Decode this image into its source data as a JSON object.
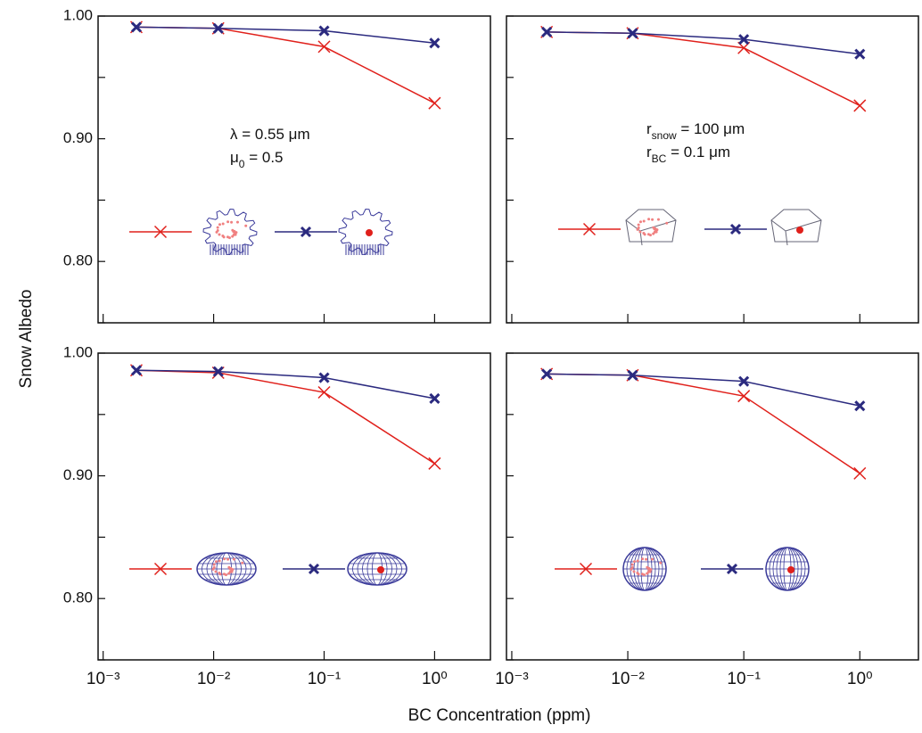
{
  "ylabel": "Snow Albedo",
  "xlabel": "BC Concentration (ppm)",
  "chart_data": [
    {
      "type": "line",
      "log_x": true,
      "xlim": [
        0.0009,
        3.2
      ],
      "ylim": [
        0.75,
        1
      ],
      "xticks": [
        0.001,
        0.01,
        0.1,
        1
      ],
      "yticks": [
        0.75,
        {
          "value": 0.8,
          "label": "0.80"
        },
        0.85,
        {
          "value": 0.9,
          "label": "0.90"
        },
        0.95,
        {
          "value": 1,
          "label": "1.00"
        }
      ],
      "x": [
        0.002,
        0.011,
        0.1,
        1
      ],
      "series": [
        {
          "color": "#e0201b",
          "marker": "x-thin",
          "values": [
            0.991,
            0.99,
            0.975,
            0.929
          ]
        },
        {
          "color": "#2b2a7f",
          "marker": "x-bold",
          "values": [
            0.991,
            0.99,
            0.988,
            0.978
          ]
        }
      ],
      "annotation": [
        [
          {
            "text": "λ = 0.55 μm"
          }
        ],
        [
          {
            "text": "μ"
          },
          {
            "sub": "0"
          },
          {
            "text": " = 0.5"
          }
        ]
      ]
    },
    {
      "type": "line",
      "log_x": true,
      "xlim": [
        0.0009,
        3.2
      ],
      "ylim": [
        0.75,
        1
      ],
      "xticks": [
        0.001,
        0.01,
        0.1,
        1
      ],
      "yticks": [
        0.75,
        0.8,
        0.85,
        0.9,
        0.95,
        1
      ],
      "x": [
        0.002,
        0.011,
        0.1,
        1
      ],
      "series": [
        {
          "color": "#e0201b",
          "marker": "x-thin",
          "values": [
            0.987,
            0.986,
            0.974,
            0.927
          ]
        },
        {
          "color": "#2b2a7f",
          "marker": "x-bold",
          "values": [
            0.987,
            0.986,
            0.981,
            0.969
          ]
        }
      ],
      "annotation": [
        [
          {
            "text": "r"
          },
          {
            "sub": "snow"
          },
          {
            "text": " = 100 μm"
          }
        ],
        [
          {
            "text": "r"
          },
          {
            "sub": "BC"
          },
          {
            "text": " = 0.1 μm"
          }
        ]
      ]
    },
    {
      "type": "line",
      "log_x": true,
      "xlim": [
        0.0009,
        3.2
      ],
      "ylim": [
        0.75,
        1
      ],
      "xticks": [
        {
          "value": 0.001,
          "label": "10⁻³"
        },
        {
          "value": 0.01,
          "label": "10⁻²"
        },
        {
          "value": 0.1,
          "label": "10⁻¹"
        },
        {
          "value": 1,
          "label": "10⁰"
        }
      ],
      "yticks": [
        0.75,
        {
          "value": 0.8,
          "label": "0.80"
        },
        0.85,
        {
          "value": 0.9,
          "label": "0.90"
        },
        0.95,
        {
          "value": 1,
          "label": "1.00"
        }
      ],
      "x": [
        0.002,
        0.011,
        0.1,
        1
      ],
      "series": [
        {
          "color": "#e0201b",
          "marker": "x-thin",
          "values": [
            0.986,
            0.984,
            0.968,
            0.91
          ]
        },
        {
          "color": "#2b2a7f",
          "marker": "x-bold",
          "values": [
            0.986,
            0.985,
            0.98,
            0.963
          ]
        }
      ]
    },
    {
      "type": "line",
      "log_x": true,
      "xlim": [
        0.0009,
        3.2
      ],
      "ylim": [
        0.75,
        1
      ],
      "xticks": [
        {
          "value": 0.001,
          "label": "10⁻³"
        },
        {
          "value": 0.01,
          "label": "10⁻²"
        },
        {
          "value": 0.1,
          "label": "10⁻¹"
        },
        {
          "value": 1,
          "label": "10⁰"
        }
      ],
      "yticks": [
        0.75,
        0.8,
        0.85,
        0.9,
        0.95,
        1
      ],
      "x": [
        0.002,
        0.011,
        0.1,
        1
      ],
      "series": [
        {
          "color": "#e0201b",
          "marker": "x-thin",
          "values": [
            0.983,
            0.982,
            0.965,
            0.902
          ]
        },
        {
          "color": "#2b2a7f",
          "marker": "x-bold",
          "values": [
            0.983,
            0.982,
            0.977,
            0.957
          ]
        }
      ]
    }
  ]
}
